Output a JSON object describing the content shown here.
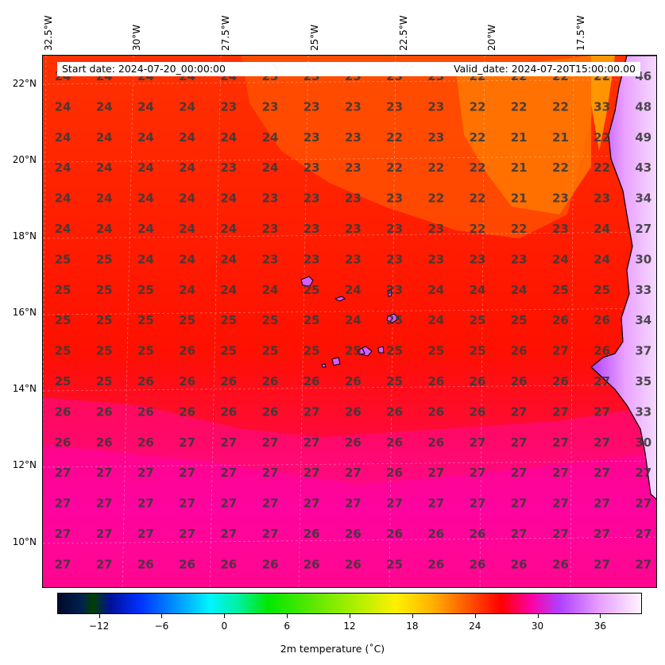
{
  "info": {
    "start_date": "Start date: 2024-07-20_00:00:00",
    "valid_date": "Valid_date: 2024-07-20T15:00:00.00"
  },
  "axes": {
    "lon_labels": [
      "32.5°W",
      "30°W",
      "27.5°W",
      "25°W",
      "22.5°W",
      "20°W",
      "17.5°W"
    ],
    "lat_labels": [
      "22°N",
      "20°N",
      "18°N",
      "16°N",
      "14°N",
      "12°N",
      "10°N"
    ]
  },
  "colorbar": {
    "title": "2m temperature (˚C)",
    "ticks": [
      "−12",
      "−6",
      "0",
      "6",
      "12",
      "18",
      "24",
      "30",
      "36"
    ],
    "tick_values": [
      -12,
      -6,
      0,
      6,
      12,
      18,
      24,
      30,
      36
    ],
    "range": [
      -16,
      40
    ]
  },
  "chart_data": {
    "type": "heatmap",
    "title": "",
    "grid_values": [
      [
        "24",
        "24",
        "24",
        "24",
        "24",
        "23",
        "23",
        "23",
        "23",
        "23",
        "22",
        "22",
        "22",
        "22",
        "46"
      ],
      [
        "24",
        "24",
        "24",
        "24",
        "23",
        "23",
        "23",
        "23",
        "23",
        "23",
        "22",
        "22",
        "22",
        "33",
        "48"
      ],
      [
        "24",
        "24",
        "24",
        "24",
        "24",
        "24",
        "23",
        "23",
        "22",
        "23",
        "22",
        "21",
        "21",
        "22",
        "49"
      ],
      [
        "24",
        "24",
        "24",
        "24",
        "23",
        "24",
        "23",
        "23",
        "22",
        "22",
        "22",
        "21",
        "22",
        "22",
        "43"
      ],
      [
        "24",
        "24",
        "24",
        "24",
        "24",
        "23",
        "23",
        "23",
        "23",
        "22",
        "22",
        "21",
        "23",
        "23",
        "34"
      ],
      [
        "24",
        "24",
        "24",
        "24",
        "24",
        "23",
        "23",
        "23",
        "23",
        "23",
        "22",
        "22",
        "23",
        "24",
        "27"
      ],
      [
        "25",
        "25",
        "24",
        "24",
        "24",
        "23",
        "23",
        "23",
        "23",
        "23",
        "23",
        "23",
        "24",
        "24",
        "30"
      ],
      [
        "25",
        "25",
        "25",
        "24",
        "24",
        "24",
        "25",
        "24",
        "23",
        "24",
        "24",
        "24",
        "25",
        "25",
        "33"
      ],
      [
        "25",
        "25",
        "25",
        "25",
        "25",
        "25",
        "25",
        "24",
        "25",
        "24",
        "25",
        "25",
        "26",
        "26",
        "34"
      ],
      [
        "25",
        "25",
        "25",
        "26",
        "25",
        "25",
        "25",
        "25",
        "25",
        "25",
        "25",
        "26",
        "27",
        "26",
        "37"
      ],
      [
        "25",
        "25",
        "26",
        "26",
        "26",
        "26",
        "26",
        "26",
        "25",
        "26",
        "26",
        "26",
        "26",
        "27",
        "35"
      ],
      [
        "26",
        "26",
        "26",
        "26",
        "26",
        "26",
        "27",
        "26",
        "26",
        "26",
        "26",
        "27",
        "27",
        "27",
        "33"
      ],
      [
        "26",
        "26",
        "26",
        "27",
        "27",
        "27",
        "27",
        "26",
        "26",
        "26",
        "27",
        "27",
        "27",
        "27",
        "30"
      ],
      [
        "27",
        "27",
        "27",
        "27",
        "27",
        "27",
        "27",
        "27",
        "26",
        "27",
        "27",
        "27",
        "27",
        "27",
        "27"
      ],
      [
        "27",
        "27",
        "27",
        "27",
        "27",
        "27",
        "27",
        "27",
        "27",
        "27",
        "27",
        "27",
        "27",
        "27",
        "27"
      ],
      [
        "27",
        "27",
        "27",
        "27",
        "27",
        "27",
        "26",
        "26",
        "26",
        "26",
        "26",
        "27",
        "27",
        "27",
        "27"
      ],
      [
        "27",
        "27",
        "26",
        "26",
        "26",
        "26",
        "26",
        "26",
        "25",
        "26",
        "26",
        "26",
        "26",
        "27",
        "27"
      ]
    ]
  },
  "colors": {
    "ocean_base": "#ff1400",
    "ocean_warm": "#ff0a78",
    "ocean_cool": "#ff5a00",
    "land": "#e36cff",
    "label_text": "#3a3a3a"
  }
}
